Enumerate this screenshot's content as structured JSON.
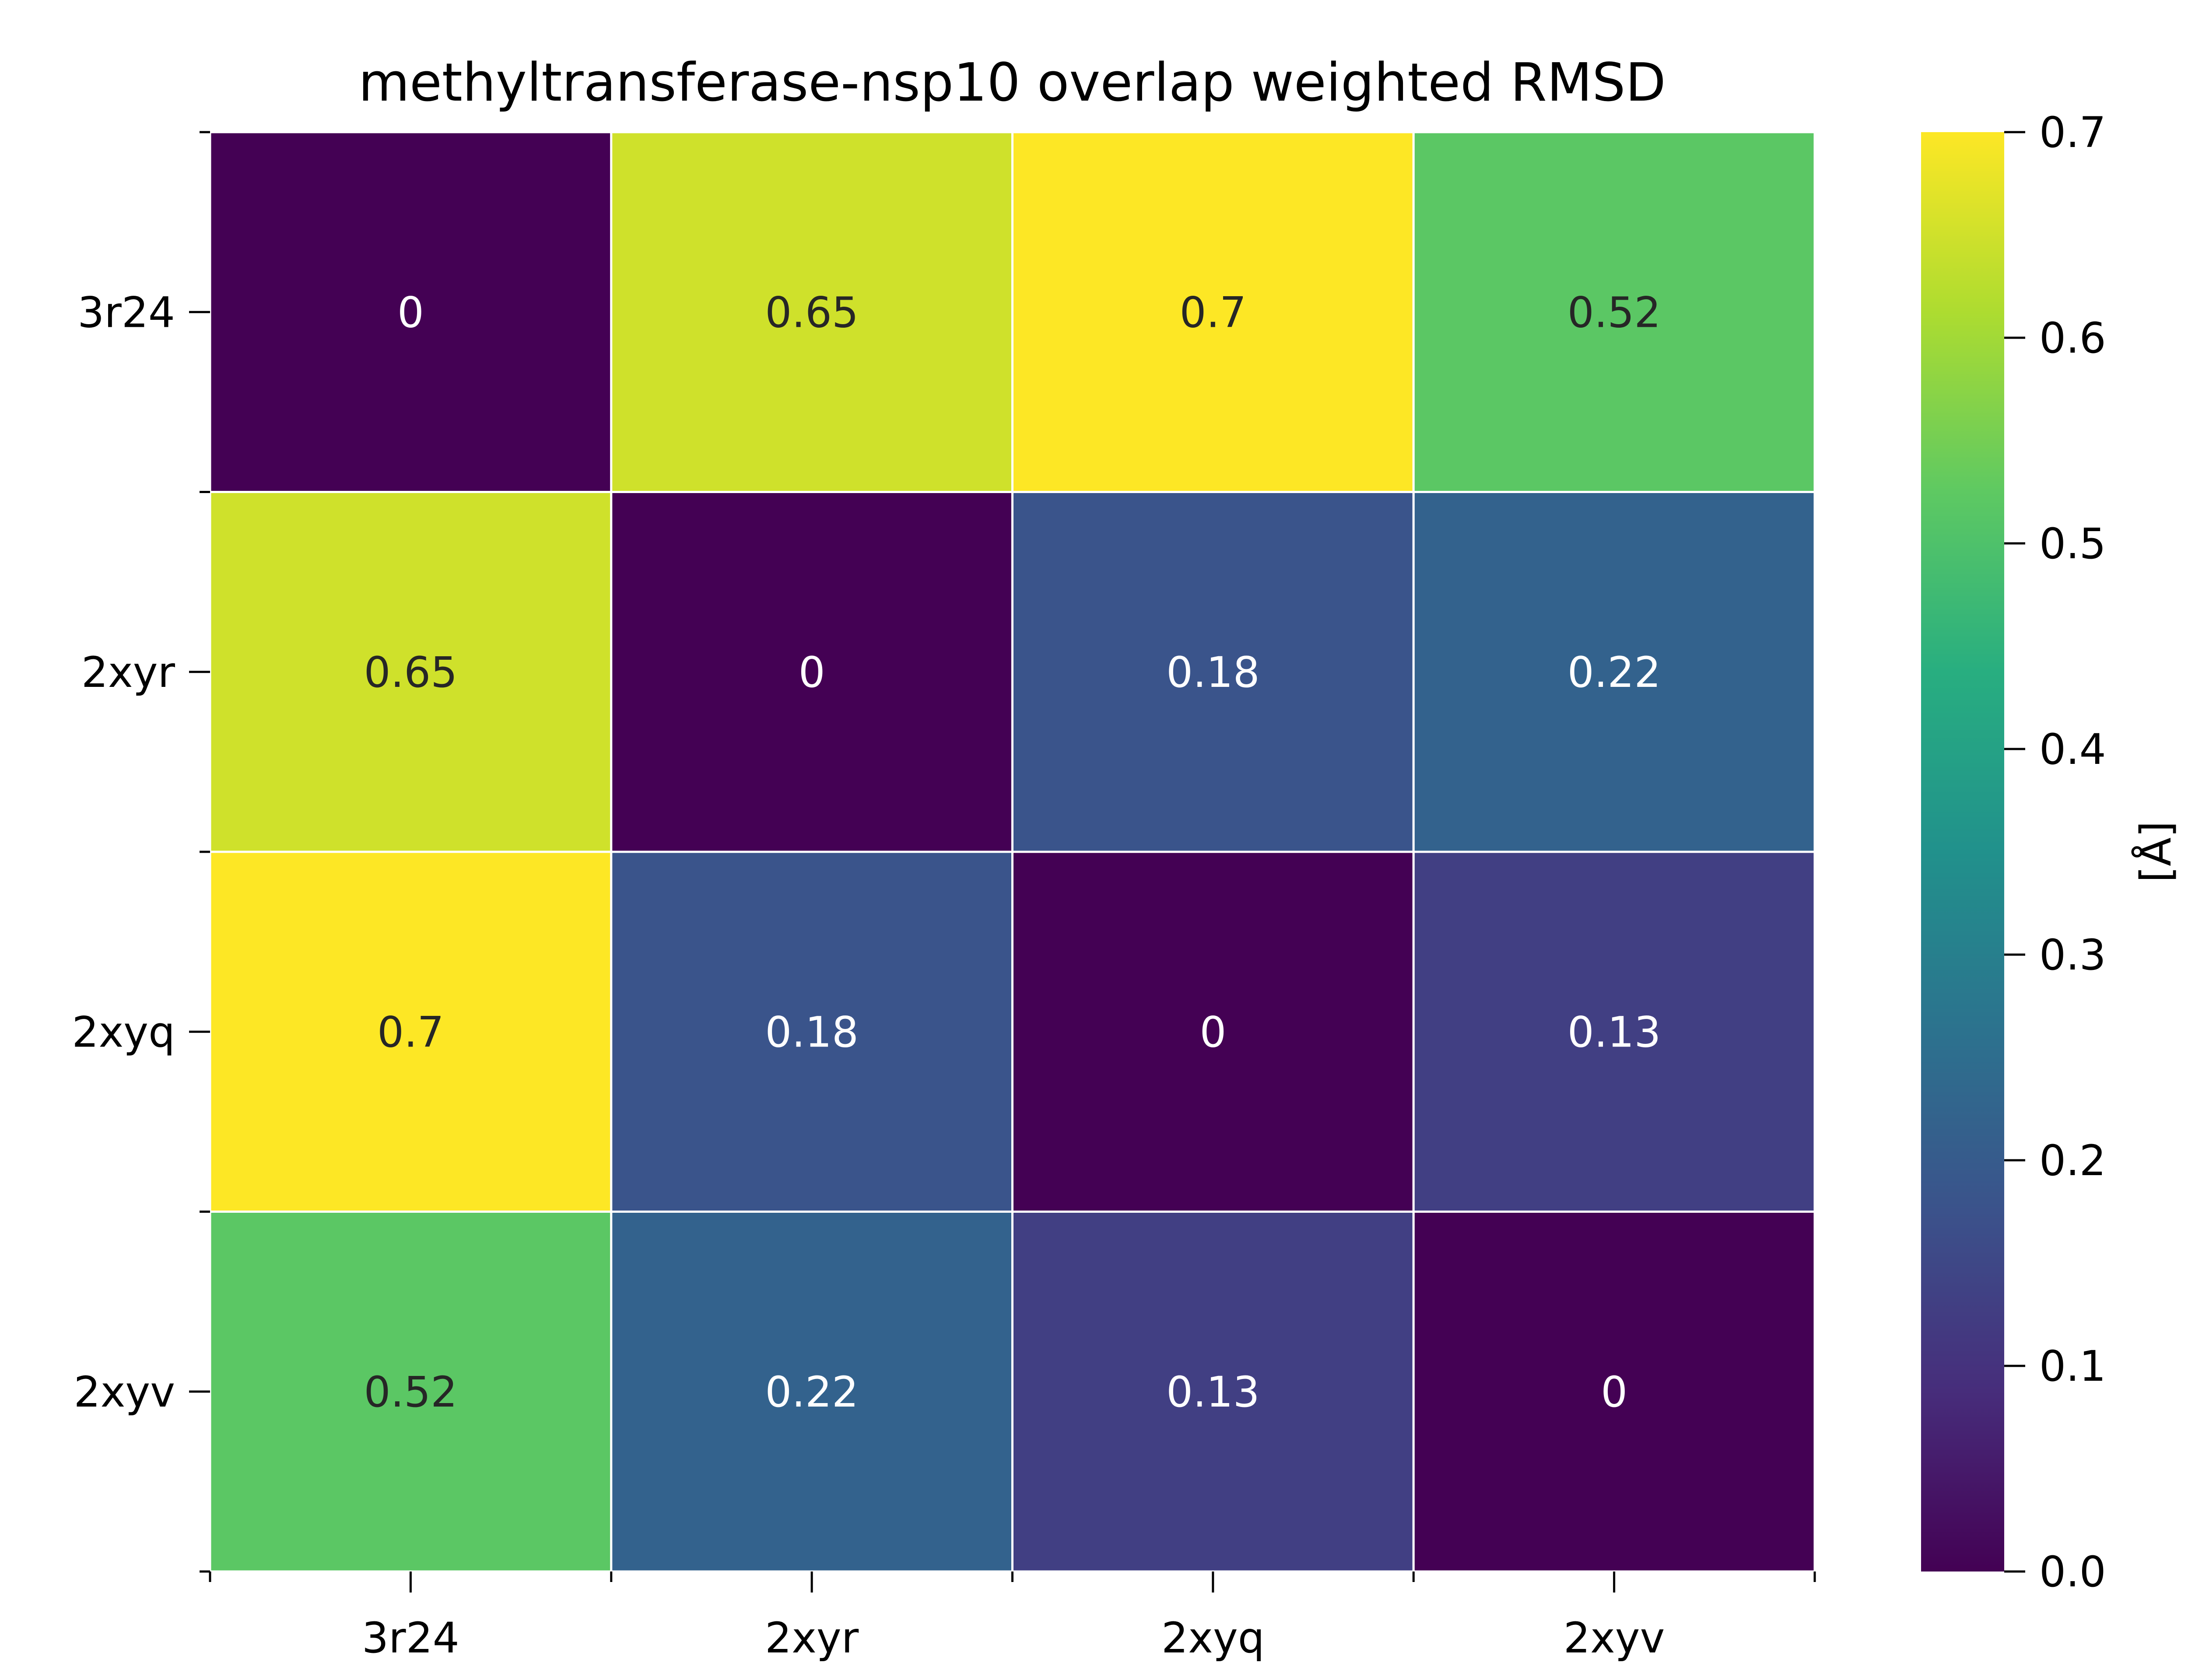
{
  "chart_data": {
    "type": "heatmap",
    "title": "methyltransferase-nsp10 overlap weighted RMSD",
    "x_categories": [
      "3r24",
      "2xyr",
      "2xyq",
      "2xyv"
    ],
    "y_categories": [
      "3r24",
      "2xyr",
      "2xyq",
      "2xyv"
    ],
    "values": [
      [
        0,
        0.65,
        0.7,
        0.52
      ],
      [
        0.65,
        0,
        0.18,
        0.22
      ],
      [
        0.7,
        0.18,
        0,
        0.13
      ],
      [
        0.52,
        0.22,
        0.13,
        0
      ]
    ],
    "cell_labels": [
      [
        "0",
        "0.65",
        "0.7",
        "0.52"
      ],
      [
        "0.65",
        "0",
        "0.18",
        "0.22"
      ],
      [
        "0.7",
        "0.18",
        "0",
        "0.13"
      ],
      [
        "0.52",
        "0.22",
        "0.13",
        "0"
      ]
    ],
    "colormap": "viridis",
    "vmin": 0.0,
    "vmax": 0.7,
    "colorbar": {
      "label": "[Å]",
      "ticks": [
        0.0,
        0.1,
        0.2,
        0.3,
        0.4,
        0.5,
        0.6,
        0.7
      ],
      "tick_labels": [
        "0.0",
        "0.1",
        "0.2",
        "0.3",
        "0.4",
        "0.5",
        "0.6",
        "0.7"
      ]
    },
    "grid": false
  }
}
